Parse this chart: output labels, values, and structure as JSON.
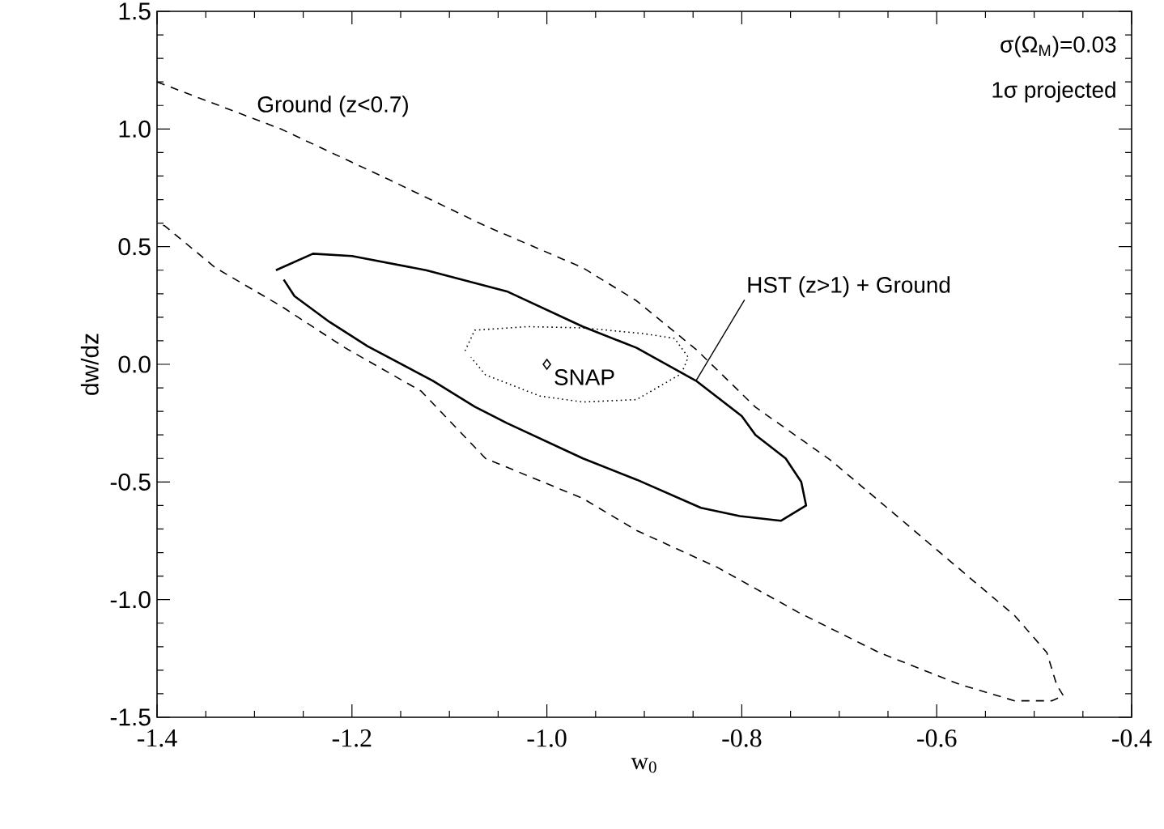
{
  "chart_data": {
    "type": "line",
    "xlabel": "w$_{0}$",
    "ylabel": "dw/dz",
    "xlim": [
      -1.4,
      -0.4
    ],
    "ylim": [
      -1.5,
      1.5
    ],
    "xticks": [
      -1.4,
      -1.2,
      {
        "value": -1.0,
        "label": "-1.0"
      },
      -0.8,
      -0.6,
      -0.4
    ],
    "yticks": [
      -1.5,
      {
        "value": -1.0,
        "label": "-1.0"
      },
      -0.5,
      {
        "value": 0.0,
        "label": "0.0"
      },
      0.5,
      {
        "value": 1.0,
        "label": "1.0"
      },
      1.5
    ],
    "annotations": [
      "σ(Ω$_{M}$)=0.03",
      "1σ projected"
    ],
    "series": [
      {
        "name": "Ground (z<0.7)",
        "type": "line",
        "line_style": "dashed",
        "color": "#000000",
        "x": [
          -1.4,
          -1.273,
          -1.162,
          -1.063,
          -0.963,
          -0.908,
          -0.846,
          -0.786,
          -0.709,
          -0.631,
          -0.565,
          -0.52,
          -0.487,
          -0.477,
          -0.47,
          -0.482,
          -0.52,
          -0.576,
          -0.659,
          -0.742,
          -0.825,
          -0.908,
          -0.963,
          -1.063,
          -1.129,
          -1.207,
          -1.273,
          -1.34,
          -1.392,
          -1.4
        ],
        "values": [
          1.2,
          1.0,
          0.785,
          0.588,
          0.41,
          0.27,
          0.06,
          -0.182,
          -0.407,
          -0.679,
          -0.911,
          -1.068,
          -1.225,
          -1.361,
          -1.409,
          -1.43,
          -1.43,
          -1.361,
          -1.225,
          -1.054,
          -0.863,
          -0.706,
          -0.57,
          -0.4,
          -0.114,
          0.07,
          0.248,
          0.41,
          0.588,
          0.6
        ]
      },
      {
        "name": "HST (z>1) + Ground",
        "type": "line",
        "line_style": "solid",
        "color": "#000000",
        "x": [
          -1.278,
          -1.24,
          -1.2,
          -1.124,
          -1.041,
          -0.963,
          -0.908,
          -0.847,
          -0.8,
          -0.786,
          -0.755,
          -0.739,
          -0.734,
          -0.76,
          -0.802,
          -0.842,
          -0.908,
          -0.963,
          -1.041,
          -1.074,
          -1.117,
          -1.184,
          -1.223,
          -1.259,
          -1.27
        ],
        "values": [
          0.4,
          0.47,
          0.46,
          0.4,
          0.31,
          0.16,
          0.07,
          -0.07,
          -0.22,
          -0.3,
          -0.4,
          -0.5,
          -0.6,
          -0.665,
          -0.645,
          -0.61,
          -0.49,
          -0.4,
          -0.25,
          -0.18,
          -0.07,
          0.077,
          0.18,
          0.29,
          0.36
        ]
      },
      {
        "type": "line",
        "line_style": "dotted",
        "color": "#000000",
        "x": [
          -1.084,
          -1.074,
          -1.02,
          -0.963,
          -0.9,
          -0.869,
          -0.855,
          -0.862,
          -0.908,
          -0.963,
          -1.007,
          -1.063,
          -1.078
        ],
        "values": [
          0.057,
          0.145,
          0.16,
          0.155,
          0.13,
          0.11,
          0.03,
          -0.04,
          -0.15,
          -0.16,
          -0.135,
          -0.045,
          0.03
        ]
      },
      {
        "name": "SNAP",
        "type": "scatter",
        "marker": "diamond",
        "color": "#000000",
        "x": [
          -1.0
        ],
        "values": [
          0.0
        ]
      }
    ]
  }
}
